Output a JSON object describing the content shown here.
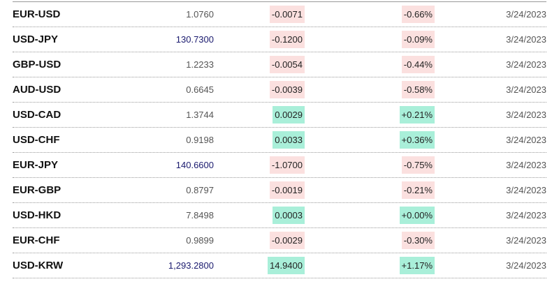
{
  "colors": {
    "negative_bg": "#fbe0df",
    "positive_bg": "#a9efd9",
    "large_value": "#1a1a6e"
  },
  "rows": [
    {
      "pair": "EUR-USD",
      "value": "1.0760",
      "change": "-0.0071",
      "pct": "-0.66%",
      "date": "3/24/2023",
      "dir": "neg"
    },
    {
      "pair": "USD-JPY",
      "value": "130.7300",
      "change": "-0.1200",
      "pct": "-0.09%",
      "date": "3/24/2023",
      "dir": "neg"
    },
    {
      "pair": "GBP-USD",
      "value": "1.2233",
      "change": "-0.0054",
      "pct": "-0.44%",
      "date": "3/24/2023",
      "dir": "neg"
    },
    {
      "pair": "AUD-USD",
      "value": "0.6645",
      "change": "-0.0039",
      "pct": "-0.58%",
      "date": "3/24/2023",
      "dir": "neg"
    },
    {
      "pair": "USD-CAD",
      "value": "1.3744",
      "change": "0.0029",
      "pct": "+0.21%",
      "date": "3/24/2023",
      "dir": "pos"
    },
    {
      "pair": "USD-CHF",
      "value": "0.9198",
      "change": "0.0033",
      "pct": "+0.36%",
      "date": "3/24/2023",
      "dir": "pos"
    },
    {
      "pair": "EUR-JPY",
      "value": "140.6600",
      "change": "-1.0700",
      "pct": "-0.75%",
      "date": "3/24/2023",
      "dir": "neg"
    },
    {
      "pair": "EUR-GBP",
      "value": "0.8797",
      "change": "-0.0019",
      "pct": "-0.21%",
      "date": "3/24/2023",
      "dir": "neg"
    },
    {
      "pair": "USD-HKD",
      "value": "7.8498",
      "change": "0.0003",
      "pct": "+0.00%",
      "date": "3/24/2023",
      "dir": "pos"
    },
    {
      "pair": "EUR-CHF",
      "value": "0.9899",
      "change": "-0.0029",
      "pct": "-0.30%",
      "date": "3/24/2023",
      "dir": "neg"
    },
    {
      "pair": "USD-KRW",
      "value": "1,293.2800",
      "change": "14.9400",
      "pct": "+1.17%",
      "date": "3/24/2023",
      "dir": "pos"
    }
  ]
}
